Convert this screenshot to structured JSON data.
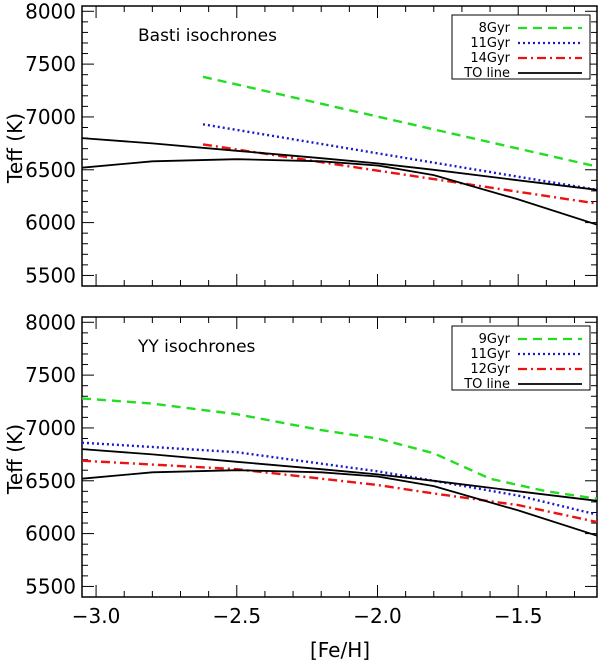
{
  "chart_data": [
    {
      "type": "line",
      "panel_label": "Basti isochrones",
      "xlabel": "[Fe/H]",
      "ylabel": "Teff (K)",
      "xlim": [
        -3.05,
        -1.22
      ],
      "ylim": [
        5400,
        8050
      ],
      "yticks": [
        5500,
        6000,
        6500,
        7000,
        7500,
        8000
      ],
      "ytick_labels": [
        "5500",
        "6000",
        "6500",
        "7000",
        "7500",
        "8000"
      ],
      "xticks": [
        -3.0,
        -2.5,
        -2.0,
        -1.5
      ],
      "legend_position": "top-right",
      "series": [
        {
          "name": "8Gyr",
          "style": "dashed",
          "color": "#22dd22",
          "x": [
            -2.62,
            -1.22
          ],
          "y": [
            7380,
            6530
          ]
        },
        {
          "name": "11Gyr",
          "style": "dotted",
          "color": "#1a1acc",
          "x": [
            -2.62,
            -1.22
          ],
          "y": [
            6930,
            6310
          ]
        },
        {
          "name": "14Gyr",
          "style": "dashdot",
          "color": "#ee1111",
          "x": [
            -2.62,
            -1.22
          ],
          "y": [
            6740,
            6180
          ]
        },
        {
          "name": "TO line",
          "style": "solid",
          "color": "#000000",
          "x": [
            -3.05,
            -2.8,
            -2.5,
            -2.2,
            -2.0,
            -1.8,
            -1.5,
            -1.22
          ],
          "y": [
            6800,
            6750,
            6680,
            6610,
            6560,
            6500,
            6400,
            6310
          ]
        },
        {
          "name": "",
          "style": "solid",
          "color": "#000000",
          "x": [
            -3.05,
            -2.8,
            -2.5,
            -2.2,
            -2.0,
            -1.8,
            -1.5,
            -1.22
          ],
          "y": [
            6520,
            6580,
            6600,
            6580,
            6540,
            6450,
            6220,
            5980
          ]
        }
      ]
    },
    {
      "type": "line",
      "panel_label": "YY isochrones",
      "xlabel": "[Fe/H]",
      "ylabel": "Teff (K)",
      "xlim": [
        -3.05,
        -1.22
      ],
      "ylim": [
        5400,
        8050
      ],
      "yticks": [
        5500,
        6000,
        6500,
        7000,
        7500,
        8000
      ],
      "ytick_labels": [
        "5500",
        "6000",
        "6500",
        "7000",
        "7500",
        "8000"
      ],
      "xticks": [
        -3.0,
        -2.5,
        -2.0,
        -1.5
      ],
      "xtick_labels": [
        "−3.0",
        "−2.5",
        "−2.0",
        "−1.5"
      ],
      "legend_position": "top-right",
      "series": [
        {
          "name": "9Gyr",
          "style": "dashed",
          "color": "#22dd22",
          "x": [
            -3.05,
            -2.8,
            -2.5,
            -2.2,
            -2.0,
            -1.8,
            -1.6,
            -1.4,
            -1.22
          ],
          "y": [
            7280,
            7230,
            7130,
            6980,
            6900,
            6760,
            6520,
            6400,
            6330
          ]
        },
        {
          "name": "11Gyr",
          "style": "dotted",
          "color": "#1a1acc",
          "x": [
            -3.05,
            -2.5,
            -2.0,
            -1.8,
            -1.5,
            -1.22
          ],
          "y": [
            6860,
            6770,
            6590,
            6500,
            6360,
            6180
          ]
        },
        {
          "name": "12Gyr",
          "style": "dashdot",
          "color": "#ee1111",
          "x": [
            -3.05,
            -2.5,
            -2.0,
            -1.8,
            -1.5,
            -1.22
          ],
          "y": [
            6690,
            6610,
            6460,
            6380,
            6270,
            6110
          ]
        },
        {
          "name": "TO line",
          "style": "solid",
          "color": "#000000",
          "x": [
            -3.05,
            -2.8,
            -2.5,
            -2.2,
            -2.0,
            -1.8,
            -1.5,
            -1.22
          ],
          "y": [
            6800,
            6750,
            6680,
            6610,
            6560,
            6500,
            6400,
            6310
          ]
        },
        {
          "name": "",
          "style": "solid",
          "color": "#000000",
          "x": [
            -3.05,
            -2.8,
            -2.5,
            -2.2,
            -2.0,
            -1.8,
            -1.5,
            -1.22
          ],
          "y": [
            6520,
            6580,
            6600,
            6580,
            6540,
            6450,
            6220,
            5980
          ]
        }
      ]
    }
  ]
}
